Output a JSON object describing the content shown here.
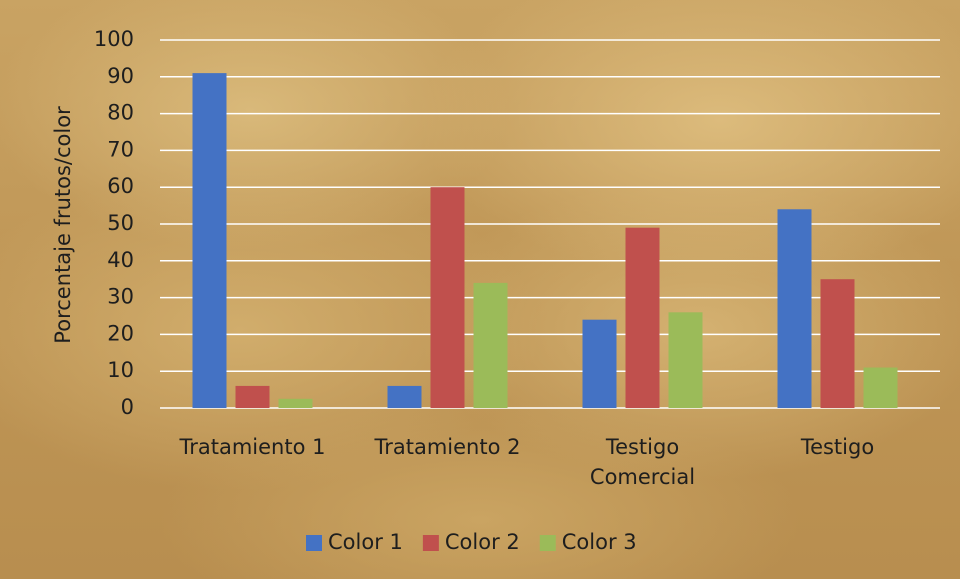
{
  "chart_data": {
    "type": "bar",
    "y_label": "Porcentaje frutos/color",
    "categories": [
      "Tratamiento 1",
      "Tratamiento 2",
      "Testigo Comercial",
      "Testigo"
    ],
    "series": [
      {
        "name": "Color 1",
        "color": "#4472c4",
        "values": [
          91,
          6,
          24,
          54
        ]
      },
      {
        "name": "Color 2",
        "color": "#c0504d",
        "values": [
          6,
          60,
          49,
          35
        ]
      },
      {
        "name": "Color 3",
        "color": "#9bbb59",
        "values": [
          2.5,
          34,
          26,
          11
        ]
      }
    ],
    "ylim": [
      0,
      100
    ],
    "yticks": [
      0,
      10,
      20,
      30,
      40,
      50,
      60,
      70,
      80,
      90,
      100
    ],
    "grid": true,
    "legend": "bottom"
  }
}
